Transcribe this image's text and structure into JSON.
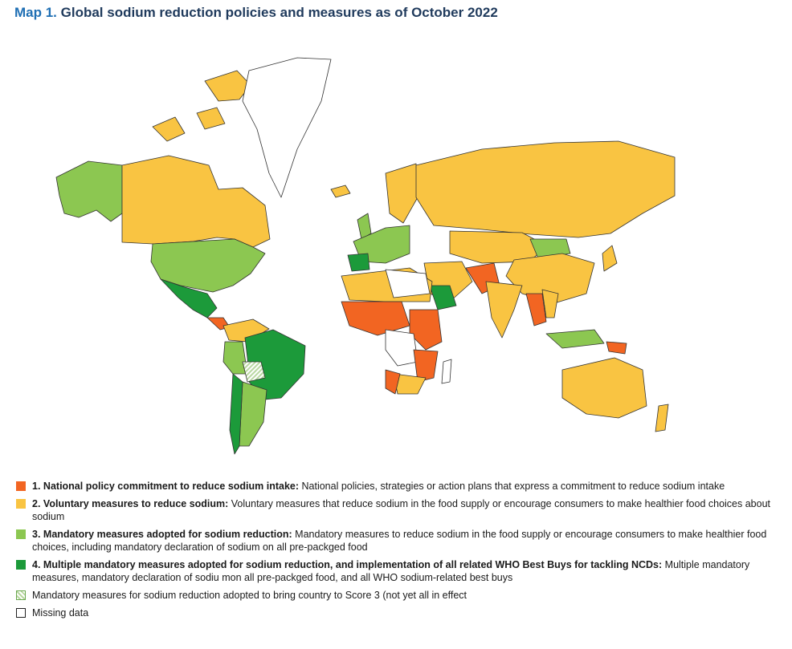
{
  "title": {
    "number": "Map 1.",
    "text": "Global sodium reduction policies and measures as of October 2022"
  },
  "colors": {
    "score1": "#f26522",
    "score2": "#f9c442",
    "score3": "#8cc751",
    "score4": "#1c9a3a",
    "hatched": "#b9d7a1",
    "missing": "#ffffff",
    "border": "#1a1a1a",
    "title_number": "#1f6fb4",
    "title_text": "#1f3a5c"
  },
  "legend": [
    {
      "num": "1.",
      "label": "National policy commitment to reduce sodium intake:",
      "desc": " National policies, strategies or action plans that express a commitment to reduce sodium intake",
      "color_key": "score1"
    },
    {
      "num": "2.",
      "label": "Voluntary measures to reduce sodium:",
      "desc": " Voluntary measures that reduce sodium in the food supply or encourage consumers to make healthier food choices about sodium",
      "color_key": "score2"
    },
    {
      "num": "3.",
      "label": "Mandatory measures adopted for sodium reduction:",
      "desc": " Mandatory measures to reduce sodium in the food supply or encourage consumers to make healthier food choices, including mandatory declaration of sodium on all pre-packged food",
      "color_key": "score3"
    },
    {
      "num": "4.",
      "label": "Multiple mandatory measures adopted for sodium reduction, and implementation of all related WHO Best Buys for tackling NCDs:",
      "desc": " Multiple mandatory measures, mandatory declaration of sodiu mon all pre-packged food, and all WHO sodium-related best buys",
      "color_key": "score4"
    },
    {
      "num": "",
      "label": "",
      "desc": "Mandatory measures for sodium reduction adopted to bring country to Score 3 (not yet all in effect",
      "color_key": "hatched"
    },
    {
      "num": "",
      "label": "",
      "desc": "Missing data",
      "color_key": "missing"
    }
  ]
}
